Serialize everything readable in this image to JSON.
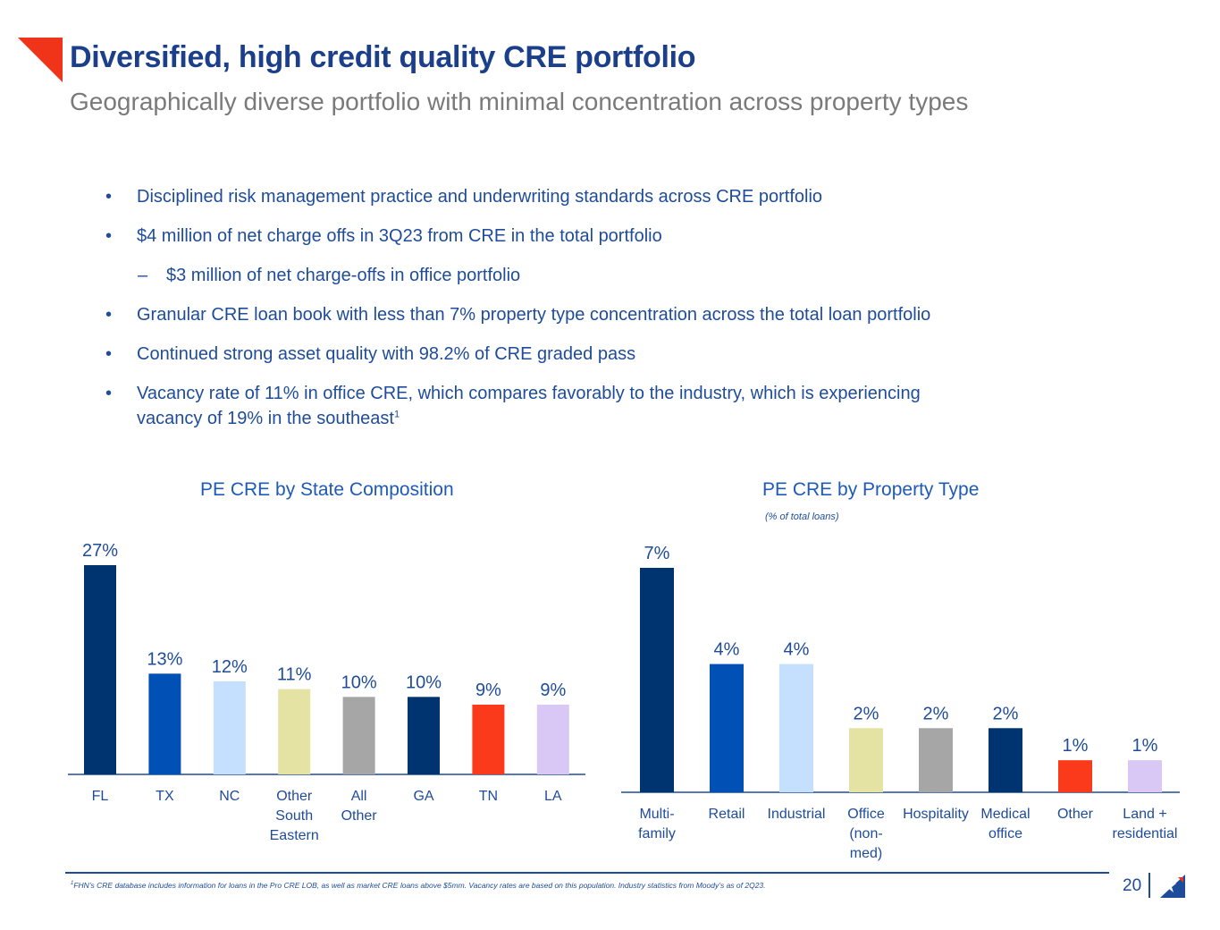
{
  "header": {
    "title": "Diversified, high credit quality CRE portfolio",
    "subtitle": "Geographically diverse portfolio with minimal concentration across property types"
  },
  "bullets": [
    {
      "marker": "•",
      "text": "Disciplined risk management practice and underwriting standards across CRE portfolio"
    },
    {
      "marker": "•",
      "text": "$4 million of net charge offs in 3Q23 from CRE in the total portfolio"
    },
    {
      "marker": "–",
      "text": "$3 million of net charge-offs in office portfolio"
    },
    {
      "marker": "•",
      "text": "Granular CRE loan book with less than 7% property type concentration across the total loan portfolio"
    },
    {
      "marker": "•",
      "text": "Continued strong asset quality with 98.2% of CRE graded pass"
    },
    {
      "marker": "•",
      "text": "Vacancy rate of 11% in office CRE, which compares favorably to the industry, which is experiencing vacancy of 19% in the southeast",
      "superscript": "1"
    }
  ],
  "chart_data": [
    {
      "type": "bar",
      "title": "PE CRE by State Composition",
      "categories": [
        "FL",
        "TX",
        "NC",
        "Other South Eastern",
        "All Other",
        "GA",
        "TN",
        "LA"
      ],
      "values": [
        27,
        13,
        12,
        11,
        10,
        10,
        9,
        9
      ],
      "value_labels": [
        "27%",
        "13%",
        "12%",
        "11%",
        "10%",
        "10%",
        "9%",
        "9%"
      ],
      "unit": "%",
      "colors": [
        "#003470",
        "#0050B5",
        "#C5DFFF",
        "#E5E3A3",
        "#A6A6A6",
        "#003470",
        "#FA3A1A",
        "#D9C8F5"
      ],
      "ylim": [
        0,
        27
      ]
    },
    {
      "type": "bar",
      "title": "PE CRE by Property Type",
      "subtitle": "(% of total loans)",
      "categories": [
        "Multi-family",
        "Retail",
        "Industrial",
        "Office (non-med)",
        "Hospitality",
        "Medical office",
        "Other",
        "Land + residential"
      ],
      "values": [
        7,
        4,
        4,
        2,
        2,
        2,
        1,
        1
      ],
      "value_labels": [
        "7%",
        "4%",
        "4%",
        "2%",
        "2%",
        "2%",
        "1%",
        "1%"
      ],
      "unit": "%",
      "colors": [
        "#003470",
        "#0050B5",
        "#C5DFFF",
        "#E5E3A3",
        "#A6A6A6",
        "#003470",
        "#FA3A1A",
        "#D9C8F5"
      ],
      "ylim": [
        0,
        7
      ]
    }
  ],
  "footer": {
    "footnote_mark": "1",
    "footnote": "FHN’s CRE database includes information for loans in the Pro CRE LOB, as well as market CRE loans above $5mm. Vacancy rates are based on this population. Industry statistics from Moody’s as of 2Q23.",
    "page_number": "20"
  },
  "colors": {
    "title": "#1B3F8B",
    "subtitle": "#7A7A7A",
    "body_text": "#1E4C9A",
    "accent_red": "#FA3A1A"
  }
}
